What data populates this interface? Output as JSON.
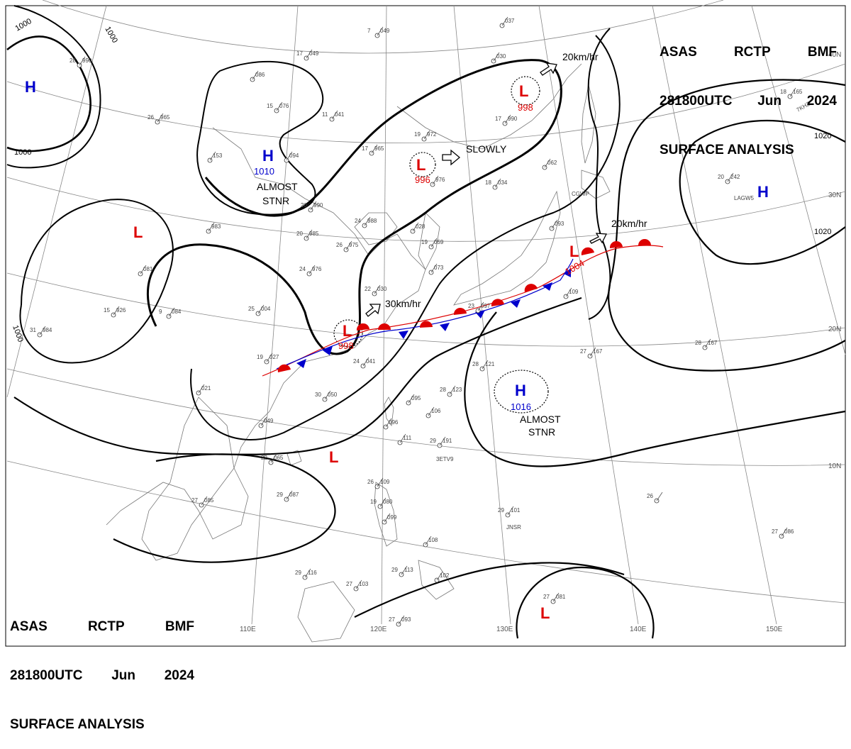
{
  "header_top": {
    "line1": [
      "ASAS",
      "RCTP",
      "BMF"
    ],
    "line2": [
      "281800UTC",
      "Jun",
      "2024"
    ],
    "line3": "SURFACE ANALYSIS"
  },
  "header_bottom": {
    "line1": [
      "ASAS",
      "RCTP",
      "BMF"
    ],
    "line2": [
      "281800UTC",
      "Jun",
      "2024"
    ],
    "line3": "SURFACE ANALYSIS"
  },
  "grid": {
    "lat_labels": [
      "40N",
      "30N",
      "20N",
      "10N"
    ],
    "lon_labels": [
      "110E",
      "120E",
      "130E",
      "140E",
      "150E"
    ]
  },
  "isobars": [
    "1000",
    "1000",
    "1000",
    "1000",
    "1020",
    "1020"
  ],
  "pressure_systems": [
    {
      "type": "H",
      "value": "",
      "color": "#0000cc"
    },
    {
      "type": "H",
      "value": "1010",
      "color": "#0000cc"
    },
    {
      "type": "H",
      "value": "1016",
      "color": "#0000cc"
    },
    {
      "type": "H",
      "value": "",
      "color": "#0000cc"
    },
    {
      "type": "L",
      "value": "998",
      "color": "#dd0000"
    },
    {
      "type": "L",
      "value": "996",
      "color": "#dd0000"
    },
    {
      "type": "L",
      "value": "998",
      "color": "#dd0000"
    },
    {
      "type": "L",
      "value": "1004",
      "color": "#dd0000"
    },
    {
      "type": "L",
      "value": "",
      "color": "#dd0000"
    },
    {
      "type": "L",
      "value": "",
      "color": "#dd0000"
    },
    {
      "type": "L",
      "value": "",
      "color": "#dd0000"
    }
  ],
  "annotations": {
    "almost_stnr_1": [
      "ALMOST",
      "STNR"
    ],
    "almost_stnr_2": [
      "ALMOST",
      "STNR"
    ],
    "slowly": "SLOWLY",
    "motion_20_north": "20km/hr",
    "motion_20_east": "20km/hr",
    "motion_30": "30km/hr"
  },
  "stations": [
    {
      "t": "7",
      "p": "049"
    },
    {
      "t": "17",
      "p": "049"
    },
    {
      "t": "",
      "p": "086"
    },
    {
      "t": "15",
      "p": "076"
    },
    {
      "t": "11",
      "p": "041"
    },
    {
      "t": "28",
      "p": "990"
    },
    {
      "t": "26",
      "p": "965"
    },
    {
      "t": "",
      "p": "153"
    },
    {
      "t": "",
      "p": "094"
    },
    {
      "t": "19",
      "p": "972"
    },
    {
      "t": "17",
      "p": "965"
    },
    {
      "t": "",
      "p": "976"
    },
    {
      "t": "",
      "p": "037"
    },
    {
      "t": "",
      "p": "030"
    },
    {
      "t": "17",
      "p": "990"
    },
    {
      "t": "18",
      "p": "034"
    },
    {
      "t": "",
      "p": "062"
    },
    {
      "t": "20",
      "p": "990"
    },
    {
      "t": "",
      "p": "983"
    },
    {
      "t": "20",
      "p": "985"
    },
    {
      "t": "24",
      "p": "988"
    },
    {
      "t": "",
      "p": "028"
    },
    {
      "t": "19",
      "p": "059"
    },
    {
      "t": "26",
      "p": "975"
    },
    {
      "t": "",
      "p": "081"
    },
    {
      "t": "24",
      "p": "976"
    },
    {
      "t": "",
      "p": "073"
    },
    {
      "t": "22",
      "p": "030"
    },
    {
      "t": "15",
      "p": "926"
    },
    {
      "t": "9",
      "p": "084"
    },
    {
      "t": "25",
      "p": "004"
    },
    {
      "t": "",
      "p": "093"
    },
    {
      "t": "",
      "p": "109"
    },
    {
      "t": "31",
      "p": "984"
    },
    {
      "t": "23",
      "p": "097"
    },
    {
      "t": "19",
      "p": "027"
    },
    {
      "t": "24",
      "p": "041"
    },
    {
      "t": "28",
      "p": "121"
    },
    {
      "t": "",
      "p": "021"
    },
    {
      "t": "30",
      "p": "050"
    },
    {
      "t": "",
      "p": "095"
    },
    {
      "t": "28",
      "p": "123"
    },
    {
      "t": "",
      "p": "049"
    },
    {
      "t": "",
      "p": "096"
    },
    {
      "t": "",
      "p": "106"
    },
    {
      "t": "",
      "p": "111"
    },
    {
      "t": "29",
      "p": "191"
    },
    {
      "t": "22",
      "p": "065"
    },
    {
      "t": "27",
      "p": "085"
    },
    {
      "t": "29",
      "p": "087"
    },
    {
      "t": "26",
      "p": "109"
    },
    {
      "t": "19",
      "p": "080"
    },
    {
      "t": "",
      "p": "099"
    },
    {
      "t": "29",
      "p": "101"
    },
    {
      "t": "",
      "p": "108"
    },
    {
      "t": "27",
      "p": "086"
    },
    {
      "t": "29",
      "p": "116"
    },
    {
      "t": "27",
      "p": "103"
    },
    {
      "t": "29",
      "p": "113"
    },
    {
      "t": "",
      "p": "102"
    },
    {
      "t": "27",
      "p": "093"
    },
    {
      "t": "27",
      "p": "081"
    },
    {
      "t": "20",
      "p": "242"
    },
    {
      "t": "27",
      "p": "167"
    },
    {
      "t": "28",
      "p": "167"
    },
    {
      "t": "26",
      "p": ""
    },
    {
      "t": "18",
      "p": "165"
    }
  ],
  "ship_ids": [
    "CGWP",
    "LAGW5",
    "7KHZ",
    "3ETV9",
    "JNSR"
  ],
  "colors": {
    "warm_front": "#dd0000",
    "cold_front": "#0000cc",
    "low": "#dd0000",
    "high": "#0000cc",
    "grid": "#888888",
    "coast": "#777777"
  }
}
